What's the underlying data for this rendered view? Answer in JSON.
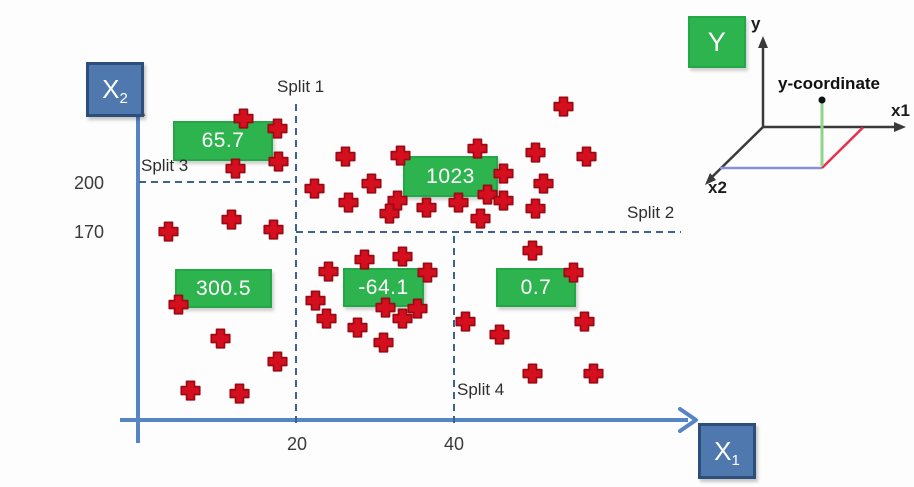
{
  "colors": {
    "axis_blue": "#5585c2",
    "box_blue_fill": "#4e78ae",
    "box_blue_border": "#2d4d7a",
    "green_fill": "#2db44e",
    "green_border": "#24a746",
    "cross_red": "#d60f1f",
    "cross_outline": "#9b0a15",
    "dashed_split": "#3f618f",
    "inset_blue_edge": "#8890d8",
    "inset_red_edge": "#e8304a",
    "inset_green_line": "#8fd58b"
  },
  "axes": {
    "x_box": {
      "base": "X",
      "sub": "1"
    },
    "y_box": {
      "base": "X",
      "sub": "2"
    }
  },
  "inset": {
    "box_label": "Y",
    "y_axis_label": "y",
    "x1_axis_label": "x1",
    "x2_axis_label": "x2",
    "annotation": "y-coordinate"
  },
  "chart_data": {
    "type": "scatter",
    "xlabel": "X1",
    "ylabel": "X2",
    "x_ticks": [
      20,
      40
    ],
    "y_ticks": [
      200,
      170
    ],
    "legend": "none",
    "grid": false,
    "splits": [
      {
        "label": "Split 1",
        "axis": "x1",
        "value": 20
      },
      {
        "label": "Split 2",
        "axis": "x2",
        "value": 170
      },
      {
        "label": "Split 3",
        "axis": "x2",
        "value": 200
      },
      {
        "label": "Split 4",
        "axis": "x1",
        "value": 40
      }
    ],
    "region_predictions": [
      {
        "value": 65.7,
        "region": "x1 < 20, x2 > 200"
      },
      {
        "value": 1023,
        "region": "x1 > 20, x2 > 170"
      },
      {
        "value": 300.5,
        "region": "x1 < 20, x2 < 200"
      },
      {
        "value": -64.1,
        "region": "20 < x1 < 40, x2 < 170"
      },
      {
        "value": 0.7,
        "region": "x1 > 40, x2 < 170"
      }
    ],
    "points": [
      [
        13.3,
        238.4
      ],
      [
        17.7,
        232.4
      ],
      [
        17.8,
        212.6
      ],
      [
        12.3,
        208.4
      ],
      [
        22.3,
        196.4
      ],
      [
        26.3,
        215.6
      ],
      [
        26.7,
        188.0
      ],
      [
        29.5,
        199.4
      ],
      [
        33.2,
        216.2
      ],
      [
        32.9,
        189.2
      ],
      [
        31.8,
        181.4
      ],
      [
        36.5,
        185.0
      ],
      [
        40.6,
        188.0
      ],
      [
        43.0,
        220.4
      ],
      [
        44.2,
        192.8
      ],
      [
        46.3,
        205.4
      ],
      [
        46.3,
        189.2
      ],
      [
        43.4,
        178.4
      ],
      [
        50.3,
        218.0
      ],
      [
        51.3,
        199.4
      ],
      [
        53.8,
        245.6
      ],
      [
        56.8,
        215.6
      ],
      [
        50.3,
        184.4
      ],
      [
        3.9,
        170.6
      ],
      [
        11.8,
        177.8
      ],
      [
        17.1,
        171.8
      ],
      [
        5.1,
        126.8
      ],
      [
        10.5,
        106.4
      ],
      [
        17.7,
        92.6
      ],
      [
        6.7,
        75.2
      ],
      [
        12.9,
        73.4
      ],
      [
        24.1,
        146.6
      ],
      [
        28.7,
        153.8
      ],
      [
        33.5,
        155.6
      ],
      [
        22.5,
        129.2
      ],
      [
        23.8,
        118.4
      ],
      [
        27.8,
        113.0
      ],
      [
        31.3,
        125.0
      ],
      [
        31.1,
        104.0
      ],
      [
        33.5,
        118.4
      ],
      [
        35.4,
        124.4
      ],
      [
        36.7,
        146.0
      ],
      [
        49.9,
        159.2
      ],
      [
        41.4,
        116.6
      ],
      [
        45.8,
        108.8
      ],
      [
        55.1,
        146.0
      ],
      [
        56.5,
        116.6
      ],
      [
        49.9,
        85.4
      ],
      [
        57.6,
        85.4
      ]
    ]
  }
}
